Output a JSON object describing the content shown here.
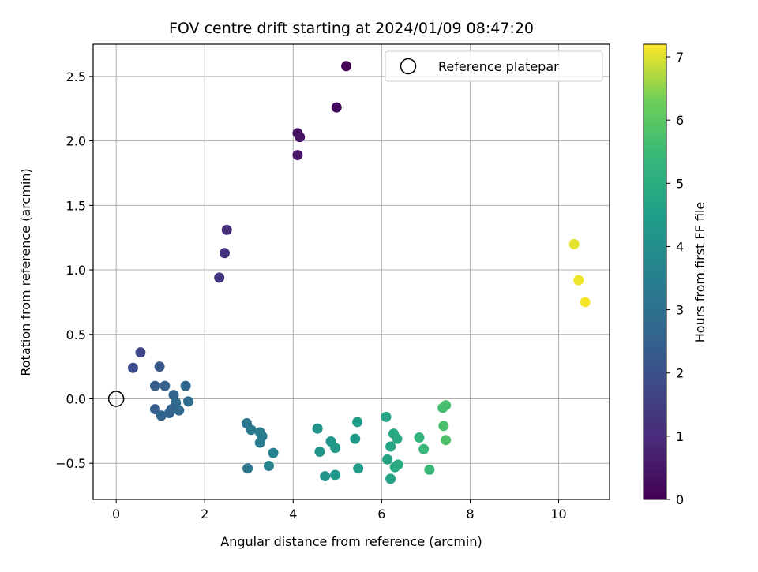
{
  "chart_data": {
    "type": "scatter",
    "title": "FOV centre drift starting at 2024/01/09 08:47:20",
    "xlabel": "Angular distance from reference (arcmin)",
    "ylabel": "Rotation from reference (arcmin)",
    "xlim": [
      -0.52,
      11.15
    ],
    "ylim": [
      -0.78,
      2.75
    ],
    "xticks": [
      0,
      2,
      4,
      6,
      8,
      10
    ],
    "yticks": [
      -0.5,
      0.0,
      0.5,
      1.0,
      1.5,
      2.0,
      2.5
    ],
    "grid": true,
    "legend": {
      "position": "top-right",
      "entries": [
        "Reference platepar"
      ]
    },
    "reference_point": {
      "x": 0,
      "y": 0
    },
    "colorbar": {
      "label": "Hours from first FF file",
      "min": 0,
      "max": 7.2,
      "ticks": [
        0,
        1,
        2,
        3,
        4,
        5,
        6,
        7
      ],
      "colormap": "viridis"
    },
    "points": [
      {
        "x": 5.2,
        "y": 2.58,
        "c": 0.05
      },
      {
        "x": 4.98,
        "y": 2.26,
        "c": 0.15
      },
      {
        "x": 4.1,
        "y": 2.06,
        "c": 0.35
      },
      {
        "x": 4.15,
        "y": 2.03,
        "c": 0.4
      },
      {
        "x": 4.1,
        "y": 1.89,
        "c": 0.45
      },
      {
        "x": 2.5,
        "y": 1.31,
        "c": 1.05
      },
      {
        "x": 2.45,
        "y": 1.13,
        "c": 1.15
      },
      {
        "x": 2.33,
        "y": 0.94,
        "c": 1.25
      },
      {
        "x": 0.55,
        "y": 0.36,
        "c": 1.75
      },
      {
        "x": 0.38,
        "y": 0.24,
        "c": 1.9
      },
      {
        "x": 0.98,
        "y": 0.25,
        "c": 2.2
      },
      {
        "x": 0.88,
        "y": 0.1,
        "c": 2.45
      },
      {
        "x": 1.1,
        "y": 0.1,
        "c": 2.5
      },
      {
        "x": 1.57,
        "y": 0.1,
        "c": 2.7
      },
      {
        "x": 1.3,
        "y": 0.03,
        "c": 2.6
      },
      {
        "x": 1.35,
        "y": -0.03,
        "c": 2.75
      },
      {
        "x": 1.63,
        "y": -0.02,
        "c": 2.85
      },
      {
        "x": 0.88,
        "y": -0.08,
        "c": 2.4
      },
      {
        "x": 1.25,
        "y": -0.08,
        "c": 2.55
      },
      {
        "x": 1.42,
        "y": -0.09,
        "c": 2.8
      },
      {
        "x": 1.2,
        "y": -0.11,
        "c": 2.65
      },
      {
        "x": 1.02,
        "y": -0.13,
        "c": 2.6
      },
      {
        "x": 2.95,
        "y": -0.19,
        "c": 3.2
      },
      {
        "x": 3.05,
        "y": -0.24,
        "c": 3.25
      },
      {
        "x": 3.25,
        "y": -0.26,
        "c": 3.35
      },
      {
        "x": 3.3,
        "y": -0.29,
        "c": 3.4
      },
      {
        "x": 3.25,
        "y": -0.34,
        "c": 3.45
      },
      {
        "x": 3.55,
        "y": -0.42,
        "c": 3.55
      },
      {
        "x": 3.45,
        "y": -0.52,
        "c": 3.65
      },
      {
        "x": 2.97,
        "y": -0.54,
        "c": 3.15
      },
      {
        "x": 4.55,
        "y": -0.23,
        "c": 4.1
      },
      {
        "x": 4.6,
        "y": -0.41,
        "c": 4.2
      },
      {
        "x": 4.85,
        "y": -0.33,
        "c": 4.25
      },
      {
        "x": 4.95,
        "y": -0.38,
        "c": 4.3
      },
      {
        "x": 4.95,
        "y": -0.59,
        "c": 4.35
      },
      {
        "x": 4.72,
        "y": -0.6,
        "c": 4.2
      },
      {
        "x": 5.4,
        "y": -0.31,
        "c": 4.4
      },
      {
        "x": 5.45,
        "y": -0.18,
        "c": 4.45
      },
      {
        "x": 5.47,
        "y": -0.54,
        "c": 4.5
      },
      {
        "x": 6.1,
        "y": -0.14,
        "c": 4.75
      },
      {
        "x": 6.27,
        "y": -0.27,
        "c": 4.85
      },
      {
        "x": 6.35,
        "y": -0.31,
        "c": 4.9
      },
      {
        "x": 6.2,
        "y": -0.37,
        "c": 4.8
      },
      {
        "x": 6.13,
        "y": -0.47,
        "c": 4.7
      },
      {
        "x": 6.37,
        "y": -0.51,
        "c": 4.95
      },
      {
        "x": 6.3,
        "y": -0.53,
        "c": 4.85
      },
      {
        "x": 6.2,
        "y": -0.62,
        "c": 4.65
      },
      {
        "x": 6.85,
        "y": -0.3,
        "c": 5.3
      },
      {
        "x": 6.95,
        "y": -0.39,
        "c": 5.4
      },
      {
        "x": 7.08,
        "y": -0.55,
        "c": 5.45
      },
      {
        "x": 7.38,
        "y": -0.07,
        "c": 5.65
      },
      {
        "x": 7.45,
        "y": -0.05,
        "c": 5.7
      },
      {
        "x": 7.4,
        "y": -0.21,
        "c": 5.75
      },
      {
        "x": 7.45,
        "y": -0.32,
        "c": 5.8
      },
      {
        "x": 10.35,
        "y": 1.2,
        "c": 7.05
      },
      {
        "x": 10.45,
        "y": 0.92,
        "c": 7.1
      },
      {
        "x": 10.6,
        "y": 0.75,
        "c": 7.15
      }
    ]
  }
}
